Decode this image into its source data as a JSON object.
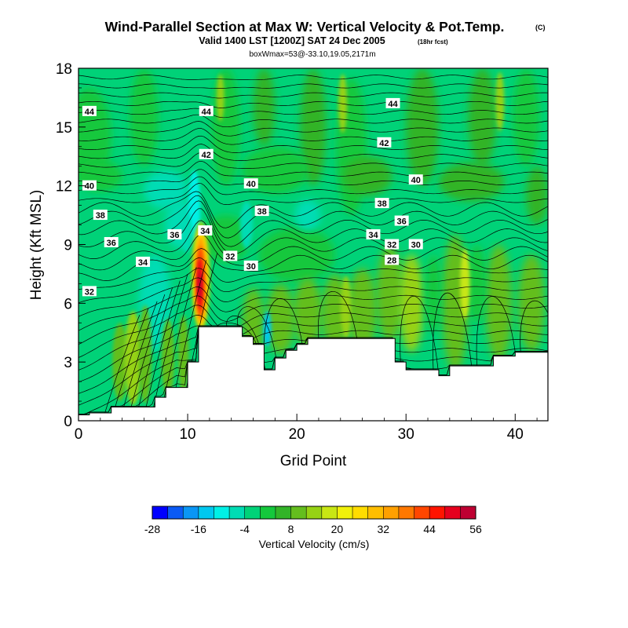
{
  "header": {
    "title": "Wind-Parallel Section at Max W: Vertical Velocity & Pot.Temp.",
    "copyright": "(C)",
    "valid_line": "Valid 1400 LST [1200Z] SAT 24 Dec 2005",
    "forecast_note": "(18hr fcst)",
    "box_line": "boxWmax=53@-33.10,19.05,2171m"
  },
  "chart_data": {
    "type": "heatmap",
    "title": "Wind-Parallel Section at Max W: Vertical Velocity & Pot.Temp.",
    "xlabel": "Grid Point",
    "ylabel": "Height (Kft MSL)",
    "xlim": [
      0,
      43
    ],
    "ylim": [
      0,
      18
    ],
    "x_ticks": [
      0,
      10,
      20,
      30,
      40
    ],
    "y_ticks": [
      0,
      3,
      6,
      9,
      12,
      15,
      18
    ],
    "colorbar": {
      "label": "Vertical Velocity (cm/s)",
      "min": -28,
      "max": 56,
      "step": 4,
      "tick_labels": [
        "-28",
        "-16",
        "-4",
        "8",
        "20",
        "32",
        "44",
        "56"
      ],
      "colors": [
        "#0000ff",
        "#0a5af5",
        "#0a96f5",
        "#00c8f0",
        "#00f0e6",
        "#00dcb4",
        "#00d278",
        "#14c83c",
        "#32b428",
        "#64be1e",
        "#96d214",
        "#c8e614",
        "#f0f00a",
        "#ffdc00",
        "#ffbe00",
        "#ffa000",
        "#ff7800",
        "#ff4600",
        "#ff1400",
        "#e6001e",
        "#be0032"
      ]
    },
    "vertical_velocity_features": [
      {
        "feature": "updraft core",
        "grid_point": 11.2,
        "height_kft": [
          4.5,
          9.5
        ],
        "max_cm_s": 53
      },
      {
        "feature": "downdraft band",
        "grid_point": 10.5,
        "height_kft": [
          8.5,
          12.5
        ],
        "min_cm_s": -10
      },
      {
        "feature": "upstream wave updraft",
        "grid_point": 5.0,
        "height_kft": [
          2,
          7
        ],
        "max_cm_s": 16
      }
    ],
    "terrain_kft": {
      "x": [
        0,
        1,
        3,
        7,
        8,
        10,
        11,
        15,
        16,
        17,
        18,
        19,
        20,
        21,
        29,
        30,
        33,
        34,
        38,
        40,
        43
      ],
      "height": [
        0.3,
        0.4,
        0.7,
        1.2,
        1.7,
        3.0,
        4.8,
        4.3,
        3.9,
        2.6,
        3.2,
        3.6,
        3.9,
        4.2,
        3.0,
        2.6,
        2.3,
        2.8,
        3.3,
        3.5,
        3.5
      ]
    },
    "potential_temperature_labels": [
      {
        "text": "44",
        "x": 1.0,
        "y": 15.8
      },
      {
        "text": "44",
        "x": 11.7,
        "y": 15.8
      },
      {
        "text": "44",
        "x": 28.8,
        "y": 16.2
      },
      {
        "text": "42",
        "x": 11.7,
        "y": 13.6
      },
      {
        "text": "42",
        "x": 28.0,
        "y": 14.2
      },
      {
        "text": "40",
        "x": 1.0,
        "y": 12.0
      },
      {
        "text": "40",
        "x": 15.8,
        "y": 12.1
      },
      {
        "text": "40",
        "x": 30.9,
        "y": 12.3
      },
      {
        "text": "38",
        "x": 2.0,
        "y": 10.5
      },
      {
        "text": "38",
        "x": 16.8,
        "y": 10.7
      },
      {
        "text": "38",
        "x": 27.8,
        "y": 11.1
      },
      {
        "text": "36",
        "x": 3.0,
        "y": 9.1
      },
      {
        "text": "36",
        "x": 8.8,
        "y": 9.5
      },
      {
        "text": "36",
        "x": 29.6,
        "y": 10.2
      },
      {
        "text": "34",
        "x": 5.9,
        "y": 8.1
      },
      {
        "text": "34",
        "x": 11.6,
        "y": 9.7
      },
      {
        "text": "34",
        "x": 27.0,
        "y": 9.5
      },
      {
        "text": "32",
        "x": 1.0,
        "y": 6.6
      },
      {
        "text": "32",
        "x": 13.9,
        "y": 8.4
      },
      {
        "text": "32",
        "x": 28.7,
        "y": 9.0
      },
      {
        "text": "30",
        "x": 15.8,
        "y": 7.9
      },
      {
        "text": "30",
        "x": 30.9,
        "y": 9.0
      },
      {
        "text": "28",
        "x": 28.7,
        "y": 8.2
      }
    ]
  }
}
